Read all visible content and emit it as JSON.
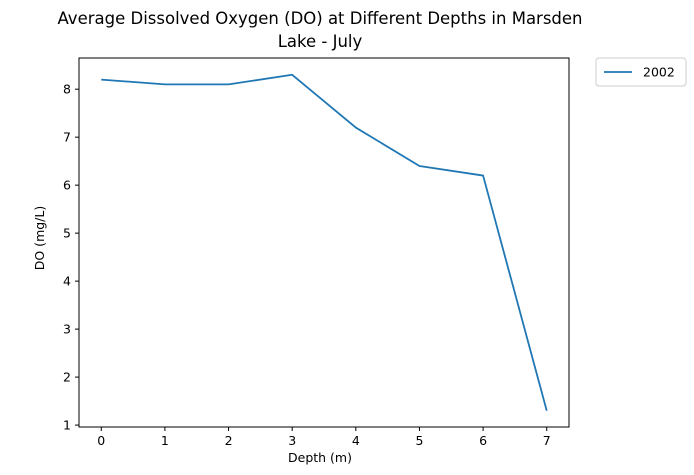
{
  "chart_data": {
    "type": "line",
    "title_line1": "Average Dissolved Oxygen (DO) at Different Depths in Marsden",
    "title_line2": "Lake - July",
    "xlabel": "Depth (m)",
    "ylabel": "DO (mg/L)",
    "x": [
      0,
      1,
      2,
      3,
      4,
      5,
      6,
      7
    ],
    "series": [
      {
        "name": "2002",
        "values": [
          8.2,
          8.1,
          8.1,
          8.3,
          7.2,
          6.4,
          6.2,
          1.3
        ],
        "color": "#1f77b4"
      }
    ],
    "xlim": [
      -0.35,
      7.35
    ],
    "ylim": [
      0.96,
      8.65
    ],
    "xticks": [
      0,
      1,
      2,
      3,
      4,
      5,
      6,
      7
    ],
    "yticks": [
      1,
      2,
      3,
      4,
      5,
      6,
      7,
      8
    ],
    "grid": false,
    "legend_position": "outside-top-right"
  }
}
